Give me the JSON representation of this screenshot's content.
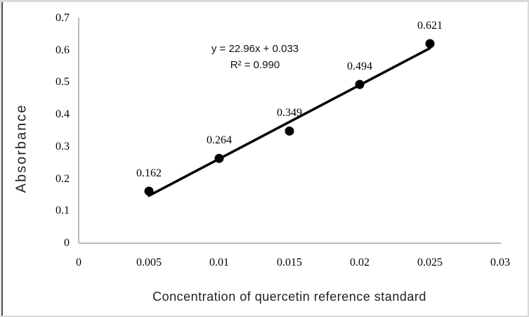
{
  "chart_data": {
    "type": "scatter",
    "x": [
      0.005,
      0.01,
      0.015,
      0.02,
      0.025
    ],
    "y": [
      0.162,
      0.264,
      0.349,
      0.494,
      0.621
    ],
    "point_labels": [
      "0.162",
      "0.264",
      "0.349",
      "0.494",
      "0.621"
    ],
    "trendline": {
      "slope": 22.96,
      "intercept": 0.033,
      "equation": "y = 22.96x + 0.033",
      "r_squared": "R² = 0.990",
      "x_start": 0.005,
      "x_end": 0.025
    },
    "title": "",
    "xlabel": "Concentration of quercetin reference standard",
    "ylabel": "Absorbance",
    "xlim": [
      0,
      0.03
    ],
    "ylim": [
      0,
      0.7
    ],
    "x_ticks": [
      0,
      0.005,
      0.01,
      0.015,
      0.02,
      0.025,
      0.03
    ],
    "x_tick_labels": [
      "0",
      "0.005",
      "0.01",
      "0.015",
      "0.02",
      "0.025",
      "0.03"
    ],
    "y_ticks": [
      0,
      0.1,
      0.2,
      0.3,
      0.4,
      0.5,
      0.6,
      0.7
    ],
    "y_tick_labels": [
      "0",
      "0.1",
      "0.2",
      "0.3",
      "0.4",
      "0.5",
      "0.6",
      "0.7"
    ],
    "grid": false,
    "legend": false,
    "colors": {
      "point": "#000000",
      "trendline": "#000000",
      "axis": "#a6a6a6",
      "text": "#000000",
      "frame_border": "#d9d9d9"
    }
  }
}
